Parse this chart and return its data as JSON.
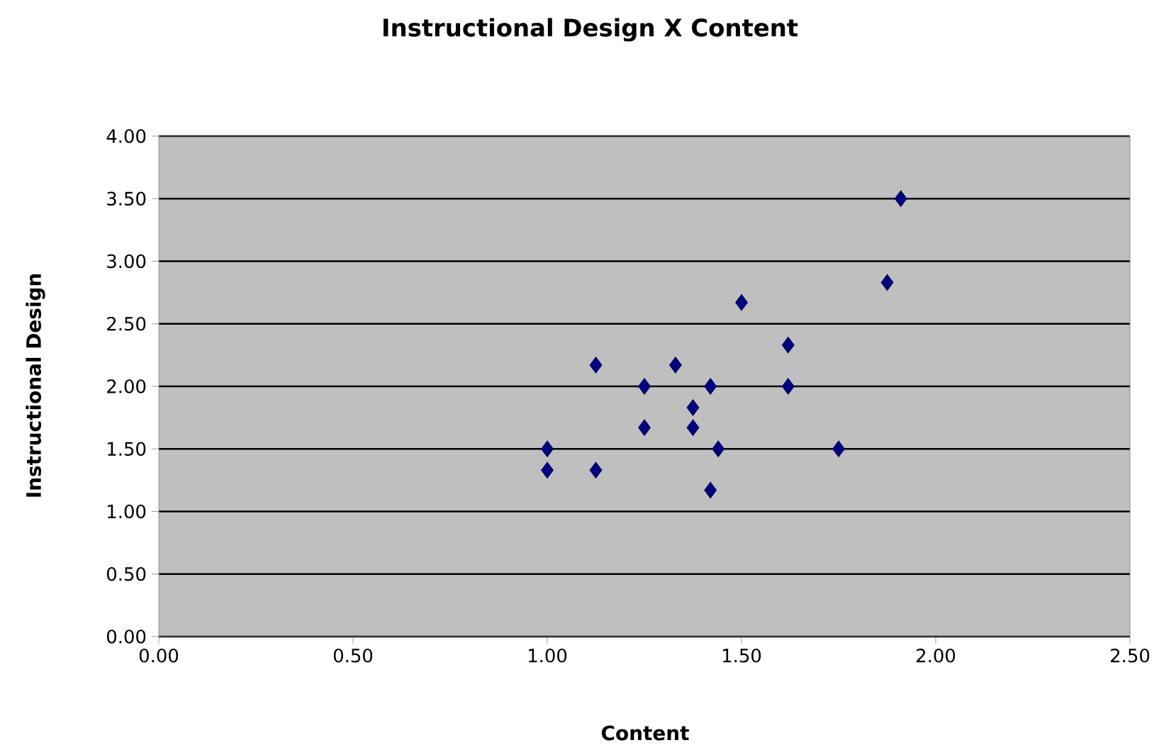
{
  "chart_data": {
    "type": "scatter",
    "title": "Instructional Design X Content",
    "xlabel": "Content",
    "ylabel": "Instructional Design",
    "x": [
      1.0,
      1.0,
      1.125,
      1.125,
      1.25,
      1.25,
      1.33,
      1.375,
      1.375,
      1.42,
      1.44,
      1.42,
      1.5,
      1.62,
      1.62,
      1.75,
      1.875,
      1.91
    ],
    "series": [
      {
        "color": "#000080",
        "values": [
          1.5,
          1.33,
          2.17,
          1.33,
          2.0,
          1.67,
          2.17,
          1.83,
          1.67,
          2.0,
          1.5,
          1.17,
          2.67,
          2.33,
          2.0,
          1.5,
          2.83,
          3.5
        ]
      }
    ],
    "xlim": [
      0,
      2.5
    ],
    "ylim": [
      0,
      4
    ],
    "xticks": [
      {
        "value": 0,
        "label": "0.00"
      },
      {
        "value": 0.5,
        "label": "0.50"
      },
      {
        "value": 1,
        "label": "1.00"
      },
      {
        "value": 1.5,
        "label": "1.50"
      },
      {
        "value": 2,
        "label": "2.00"
      },
      {
        "value": 2.5,
        "label": "2.50"
      }
    ],
    "yticks": [
      {
        "value": 0,
        "label": "0.00"
      },
      {
        "value": 0.5,
        "label": "0.50"
      },
      {
        "value": 1,
        "label": "1.00"
      },
      {
        "value": 1.5,
        "label": "1.50"
      },
      {
        "value": 2,
        "label": "2.00"
      },
      {
        "value": 2.5,
        "label": "2.50"
      },
      {
        "value": 3,
        "label": "3.00"
      },
      {
        "value": 3.5,
        "label": "3.50"
      },
      {
        "value": 4,
        "label": "4.00"
      }
    ],
    "grid": "y",
    "marker": "diamond"
  }
}
